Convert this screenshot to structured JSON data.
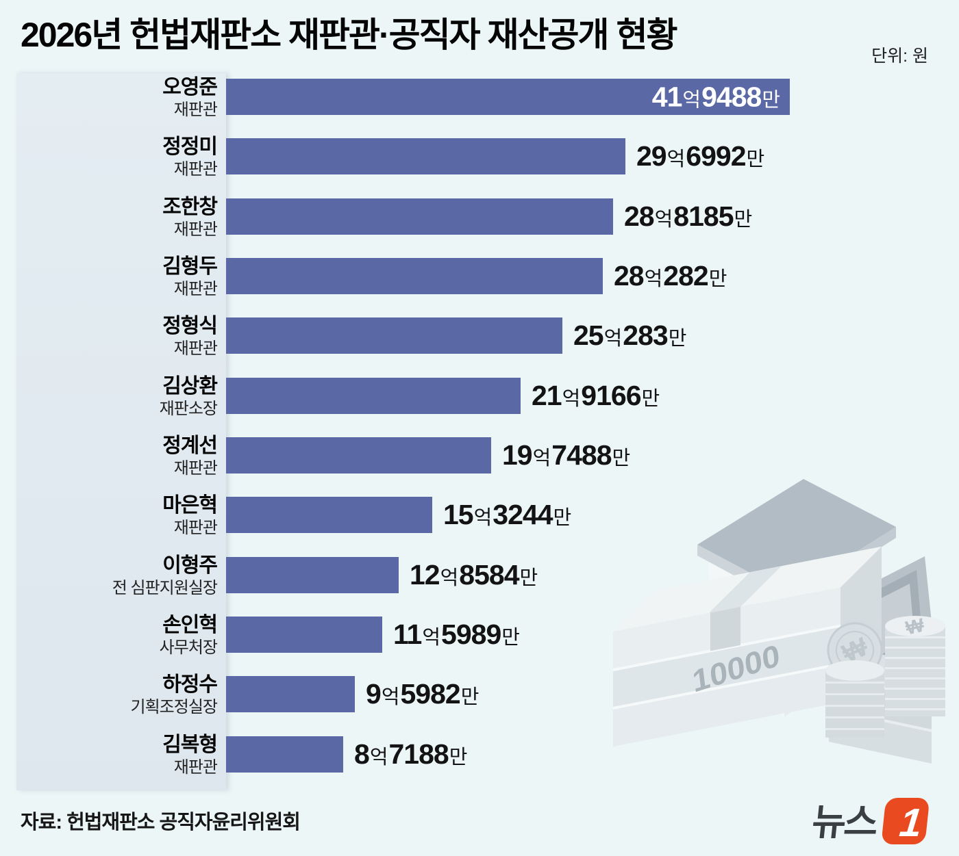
{
  "title": "2026년 헌법재판소 재판관·공직자 재산공개 현황",
  "unit_note": "단위: 원",
  "source": "자료: 헌법재판소 공직자윤리위원회",
  "logo": {
    "text": "뉴스",
    "badge": "1",
    "badge_color": "#ea4a20",
    "text_color": "#3a3f44"
  },
  "illustration": {
    "bill_label": "10000",
    "coin_symbol": "₩"
  },
  "colors": {
    "background": "#ecf6f7",
    "label_panel": "#e1eaf0",
    "bar": "#5a68a5",
    "value_inside": "#ffffff",
    "value_outside": "#131313"
  },
  "chart_data": {
    "type": "bar",
    "orientation": "horizontal",
    "title": "2026년 헌법재판소 재판관·공직자 재산공개 현황",
    "unit": "원 (값은 만원 단위 수치)",
    "legend": "none",
    "grid": false,
    "max_value": 419488,
    "rows": [
      {
        "name": "오영준",
        "role": "재판관",
        "value": 419488,
        "value_label": "41억9488만",
        "label_inside": true
      },
      {
        "name": "정정미",
        "role": "재판관",
        "value": 296992,
        "value_label": "29억6992만",
        "label_inside": false
      },
      {
        "name": "조한창",
        "role": "재판관",
        "value": 288185,
        "value_label": "28억8185만",
        "label_inside": false
      },
      {
        "name": "김형두",
        "role": "재판관",
        "value": 280282,
        "value_label": "28억282만",
        "label_inside": false
      },
      {
        "name": "정형식",
        "role": "재판관",
        "value": 250283,
        "value_label": "25억283만",
        "label_inside": false
      },
      {
        "name": "김상환",
        "role": "재판소장",
        "value": 219166,
        "value_label": "21억9166만",
        "label_inside": false
      },
      {
        "name": "정계선",
        "role": "재판관",
        "value": 197488,
        "value_label": "19억7488만",
        "label_inside": false
      },
      {
        "name": "마은혁",
        "role": "재판관",
        "value": 153244,
        "value_label": "15억3244만",
        "label_inside": false
      },
      {
        "name": "이형주",
        "role": "전 심판지원실장",
        "value": 128584,
        "value_label": "12억8584만",
        "label_inside": false
      },
      {
        "name": "손인혁",
        "role": "사무처장",
        "value": 115989,
        "value_label": "11억5989만",
        "label_inside": false
      },
      {
        "name": "하정수",
        "role": "기획조정실장",
        "value": 95982,
        "value_label": "9억5982만",
        "label_inside": false
      },
      {
        "name": "김복형",
        "role": "재판관",
        "value": 87188,
        "value_label": "8억7188만",
        "label_inside": false
      }
    ]
  }
}
